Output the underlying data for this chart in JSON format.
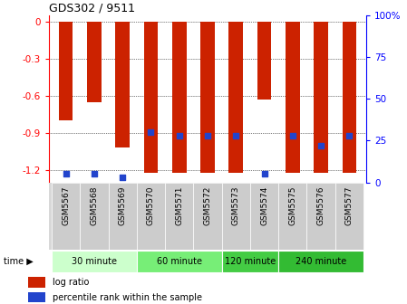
{
  "title": "GDS302 / 9511",
  "samples": [
    "GSM5567",
    "GSM5568",
    "GSM5569",
    "GSM5570",
    "GSM5571",
    "GSM5572",
    "GSM5573",
    "GSM5574",
    "GSM5575",
    "GSM5576",
    "GSM5577"
  ],
  "log_ratios": [
    -0.8,
    -0.65,
    -1.02,
    -1.22,
    -1.22,
    -1.22,
    -1.22,
    -0.63,
    -1.22,
    -1.22,
    -1.22
  ],
  "percentile_ranks": [
    5,
    5,
    3,
    30,
    28,
    28,
    28,
    5,
    28,
    22,
    28
  ],
  "ylim": [
    -1.3,
    0.05
  ],
  "yticks": [
    0,
    -0.3,
    -0.6,
    -0.9,
    -1.2
  ],
  "right_yticklabels": [
    "0",
    "25",
    "50",
    "75",
    "100%"
  ],
  "bar_color": "#cc2200",
  "percentile_color": "#2244cc",
  "groups": [
    {
      "label": "30 minute",
      "indices": [
        0,
        1,
        2
      ],
      "color": "#ccffcc"
    },
    {
      "label": "60 minute",
      "indices": [
        3,
        4,
        5
      ],
      "color": "#77ee77"
    },
    {
      "label": "120 minute",
      "indices": [
        6,
        7
      ],
      "color": "#44cc44"
    },
    {
      "label": "240 minute",
      "indices": [
        8,
        9,
        10
      ],
      "color": "#33bb33"
    }
  ],
  "bg_color": "#ffffff",
  "bar_width": 0.5
}
